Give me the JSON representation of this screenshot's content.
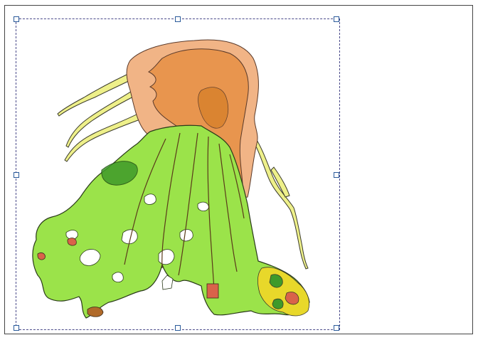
{
  "layout_canvas": {
    "selected_item": "map-item",
    "colors": {
      "page_border": "#444444",
      "selection_dash": "#4a4a8a",
      "handle_border": "#2a5a9a",
      "lava_outer": "#f1b486",
      "lava_mid": "#e8954e",
      "lava_inner": "#d9832e",
      "vegetation": "#9be34a",
      "vegetation_dark": "#3f9a2a",
      "flow_yellow": "#eef08a",
      "outline": "#3a3a2a",
      "rock_red": "#d9634a",
      "rock_yellow": "#e8d82a"
    }
  }
}
